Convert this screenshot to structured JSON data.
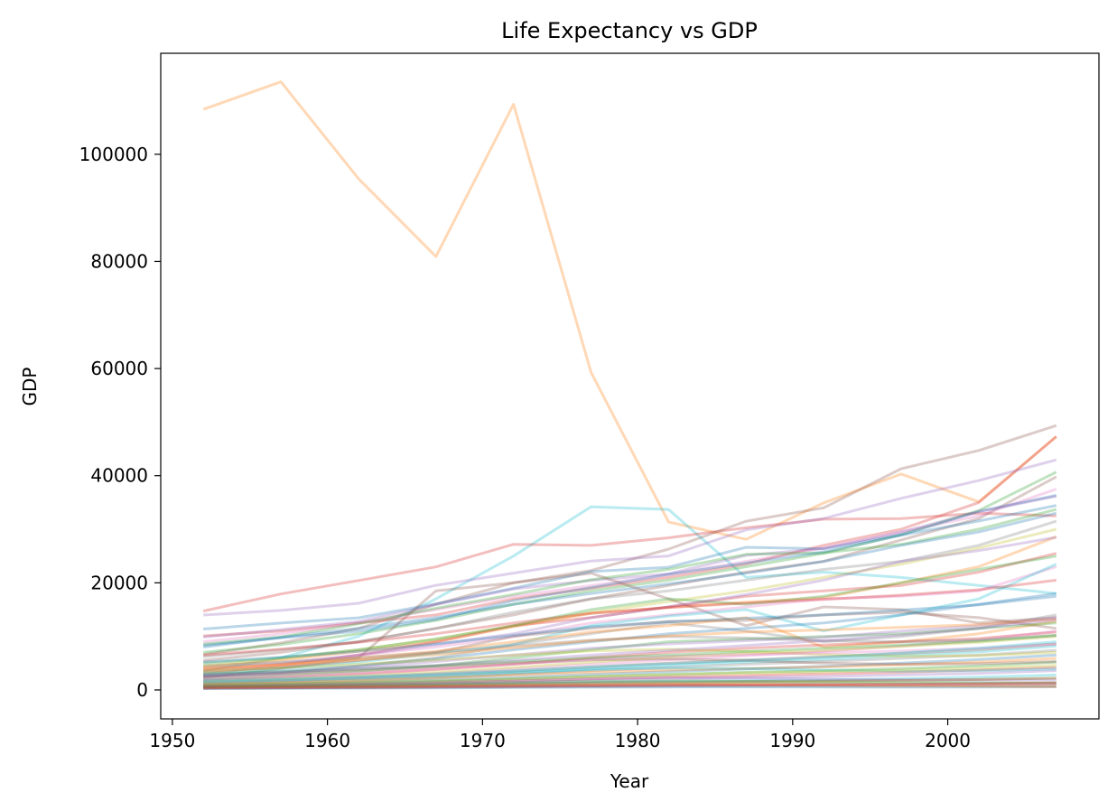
{
  "chart_data": {
    "type": "line",
    "title": "Life Expectancy vs GDP",
    "xlabel": "Year",
    "ylabel": "GDP",
    "xlim": [
      1949.25,
      2009.75
    ],
    "ylim": [
      -5400,
      118850
    ],
    "x_ticks": [
      1950,
      1960,
      1970,
      1980,
      1990,
      2000
    ],
    "y_ticks": [
      0,
      20000,
      40000,
      60000,
      80000,
      100000
    ],
    "x": [
      1952,
      1957,
      1962,
      1967,
      1972,
      1977,
      1982,
      1987,
      1992,
      1997,
      2002,
      2007
    ],
    "grid": false,
    "legend": "none",
    "line_alpha": 0.3,
    "palette": [
      "#1f77b4",
      "#ff7f0e",
      "#2ca02c",
      "#d62728",
      "#9467bd",
      "#8c564b",
      "#e377c2",
      "#7f7f7f",
      "#bcbd22",
      "#17becf"
    ],
    "series": [
      {
        "color": "#ff7f0e",
        "values": [
          108382,
          113523,
          95458,
          80895,
          109348,
          59265,
          31354,
          28118,
          34933,
          40301,
          35110,
          47307
        ]
      },
      {
        "color": "#17becf",
        "values": [
          3500,
          6000,
          10000,
          17000,
          25000,
          34200,
          33700,
          21000,
          22000,
          21000,
          19500,
          18000
        ]
      },
      {
        "color": "#d62728",
        "values": [
          14734,
          17910,
          20431,
          22966,
          27195,
          26982,
          28397,
          30282,
          31872,
          32000,
          33000,
          32500
        ]
      },
      {
        "color": "#8c564b",
        "values": [
          6600,
          8800,
          11500,
          16000,
          20000,
          22300,
          26300,
          31500,
          34000,
          41300,
          44700,
          49357
        ]
      },
      {
        "color": "#d62728",
        "values": [
          10095,
          11000,
          12500,
          14000,
          17000,
          19000,
          21000,
          23500,
          27000,
          30000,
          35000,
          47306
        ]
      },
      {
        "color": "#9467bd",
        "values": [
          13990,
          14847,
          16173,
          19530,
          21806,
          24073,
          25009,
          29884,
          32004,
          35767,
          39097,
          42952
        ]
      },
      {
        "color": "#2ca02c",
        "values": [
          7000,
          8500,
          10500,
          13000,
          16000,
          18500,
          20500,
          23000,
          25500,
          29000,
          33500,
          40675
        ]
      },
      {
        "color": "#8c564b",
        "values": [
          5500,
          7000,
          9000,
          11500,
          14000,
          17000,
          19500,
          22000,
          24000,
          28000,
          32000,
          39800
        ]
      },
      {
        "color": "#e377c2",
        "values": [
          9000,
          10500,
          12500,
          15000,
          17500,
          19500,
          21500,
          24000,
          26500,
          29500,
          32500,
          37500
        ]
      },
      {
        "color": "#1f77b4",
        "values": [
          11367,
          12489,
          13462,
          16076,
          18970,
          22090,
          22898,
          26626,
          26342,
          28954,
          33328,
          36319
        ]
      },
      {
        "color": "#9467bd",
        "values": [
          9867,
          11276,
          12791,
          15937,
          18866,
          20422,
          21688,
          25116,
          26406,
          29478,
          33287,
          36180
        ]
      },
      {
        "color": "#2ca02c",
        "values": [
          8527,
          9911,
          12329,
          15258,
          17832,
          20585,
          22517,
          25312,
          25599,
          27165,
          30018,
          33692
        ]
      },
      {
        "color": "#1f77b4",
        "values": [
          8344,
          9714,
          10991,
          13149,
          16672,
          19117,
          21597,
          23688,
          25775,
          28897,
          31541,
          34436
        ]
      },
      {
        "color": "#bcbd22",
        "values": [
          4500,
          5800,
          7500,
          9500,
          12000,
          14500,
          16500,
          18500,
          21000,
          23500,
          26500,
          30000
        ]
      },
      {
        "color": "#7f7f7f",
        "values": [
          6200,
          7500,
          9000,
          11500,
          14500,
          17000,
          18500,
          20500,
          22500,
          24000,
          27000,
          31500
        ]
      },
      {
        "color": "#1f77b4",
        "values": [
          8000,
          9800,
          11500,
          13500,
          16000,
          18000,
          19800,
          21800,
          24000,
          27000,
          29500,
          33000
        ]
      },
      {
        "color": "#ff7f0e",
        "values": [
          4300,
          5500,
          7200,
          9000,
          11800,
          14300,
          15400,
          16400,
          17200,
          20000,
          23000,
          28600
        ]
      },
      {
        "color": "#8c564b",
        "values": [
          2300,
          4000,
          6000,
          18500,
          20000,
          21800,
          17000,
          12000,
          15500,
          15000,
          12500,
          13500
        ]
      },
      {
        "color": "#d62728",
        "values": [
          3000,
          4500,
          6500,
          9000,
          12000,
          13500,
          15500,
          17500,
          18500,
          19500,
          22000,
          25500
        ]
      },
      {
        "color": "#2ca02c",
        "values": [
          5000,
          6000,
          7500,
          9500,
          12000,
          15000,
          17000,
          16000,
          17500,
          20000,
          22500,
          25000
        ]
      },
      {
        "color": "#e377c2",
        "values": [
          3500,
          4800,
          6500,
          8000,
          10000,
          12500,
          14000,
          15500,
          17000,
          17500,
          18500,
          23000
        ]
      },
      {
        "color": "#9467bd",
        "values": [
          4000,
          5000,
          6500,
          8500,
          10500,
          13500,
          15500,
          17800,
          20500,
          24000,
          26000,
          28500
        ]
      },
      {
        "color": "#17becf",
        "values": [
          3000,
          4000,
          5200,
          6800,
          8500,
          12000,
          13800,
          15000,
          11000,
          14000,
          17000,
          23500
        ]
      },
      {
        "color": "#8c564b",
        "values": [
          3500,
          4200,
          5500,
          7000,
          10000,
          11500,
          12800,
          13000,
          14000,
          14500,
          13500,
          11500
        ]
      },
      {
        "color": "#7f7f7f",
        "values": [
          2500,
          3200,
          4500,
          6000,
          8500,
          10500,
          12500,
          11000,
          9000,
          10000,
          11500,
          14000
        ]
      },
      {
        "color": "#ff7f0e",
        "values": [
          3800,
          4800,
          6000,
          7200,
          9000,
          10800,
          12000,
          13500,
          8000,
          9000,
          10500,
          12800
        ]
      },
      {
        "color": "#1f77b4",
        "values": [
          2700,
          3500,
          4500,
          5800,
          7500,
          9000,
          10500,
          11500,
          12500,
          14000,
          16000,
          18000
        ]
      },
      {
        "color": "#2ca02c",
        "values": [
          2000,
          2700,
          3500,
          4500,
          6000,
          7500,
          9000,
          9500,
          10000,
          10500,
          11500,
          12500
        ]
      },
      {
        "color": "#9467bd",
        "values": [
          2400,
          3100,
          4200,
          5300,
          6500,
          7800,
          8600,
          9200,
          9800,
          11000,
          12000,
          13500
        ]
      },
      {
        "color": "#d62728",
        "values": [
          1800,
          2300,
          3000,
          3800,
          4800,
          6000,
          7000,
          7800,
          8400,
          9000,
          9600,
          10800
        ]
      },
      {
        "color": "#e377c2",
        "values": [
          1500,
          1900,
          2400,
          3100,
          3900,
          4800,
          5600,
          6400,
          7200,
          8200,
          9300,
          11000
        ]
      },
      {
        "color": "#bcbd22",
        "values": [
          1600,
          2000,
          2600,
          3300,
          4200,
          5200,
          6100,
          6800,
          7400,
          8100,
          8900,
          10000
        ]
      },
      {
        "color": "#17becf",
        "values": [
          1200,
          1500,
          1900,
          2400,
          3100,
          3900,
          4600,
          5200,
          5700,
          6400,
          7100,
          8200
        ]
      },
      {
        "color": "#8c564b",
        "values": [
          1300,
          1700,
          2200,
          2800,
          3500,
          4300,
          5000,
          5600,
          6200,
          6800,
          7500,
          8600
        ]
      },
      {
        "color": "#7f7f7f",
        "values": [
          1000,
          1300,
          1700,
          2200,
          2900,
          3600,
          4200,
          4800,
          5300,
          5900,
          6500,
          7400
        ]
      },
      {
        "color": "#1f77b4",
        "values": [
          900,
          1100,
          1400,
          1800,
          2300,
          2900,
          3400,
          3900,
          4400,
          5000,
          5700,
          6500
        ]
      },
      {
        "color": "#ff7f0e",
        "values": [
          1100,
          1400,
          1800,
          2300,
          2800,
          3300,
          3700,
          4000,
          4300,
          4700,
          5200,
          5900
        ]
      },
      {
        "color": "#2ca02c",
        "values": [
          800,
          1000,
          1300,
          1600,
          2000,
          2500,
          2900,
          3300,
          3600,
          4000,
          4500,
          5200
        ]
      },
      {
        "color": "#d62728",
        "values": [
          700,
          850,
          1050,
          1300,
          1650,
          2050,
          2400,
          2700,
          3000,
          3300,
          3700,
          4200
        ]
      },
      {
        "color": "#9467bd",
        "values": [
          600,
          750,
          900,
          1100,
          1400,
          1700,
          2000,
          2300,
          2500,
          2800,
          3100,
          3600
        ]
      },
      {
        "color": "#17becf",
        "values": [
          500,
          600,
          750,
          900,
          1100,
          1350,
          1550,
          1750,
          1900,
          2100,
          2400,
          2800
        ]
      },
      {
        "color": "#bcbd22",
        "values": [
          450,
          550,
          650,
          800,
          950,
          1150,
          1300,
          1450,
          1600,
          1750,
          1950,
          2200
        ]
      },
      {
        "color": "#8c564b",
        "values": [
          400,
          480,
          560,
          650,
          760,
          880,
          980,
          1050,
          1100,
          1150,
          1250,
          1400
        ]
      },
      {
        "color": "#e377c2",
        "values": [
          350,
          420,
          500,
          580,
          680,
          780,
          860,
          900,
          920,
          950,
          1000,
          1100
        ]
      },
      {
        "color": "#7f7f7f",
        "values": [
          300,
          360,
          420,
          480,
          560,
          640,
          700,
          720,
          700,
          680,
          700,
          760
        ]
      },
      {
        "color": "#1f77b4",
        "values": [
          250,
          290,
          340,
          390,
          450,
          510,
          550,
          560,
          540,
          520,
          540,
          590
        ]
      },
      {
        "color": "#ff7f0e",
        "values": [
          500,
          580,
          660,
          760,
          880,
          1000,
          1100,
          1000,
          900,
          800,
          700,
          600
        ]
      },
      {
        "color": "#2ca02c",
        "values": [
          700,
          800,
          950,
          1150,
          1400,
          1600,
          1700,
          1600,
          1500,
          1400,
          1350,
          1300
        ]
      },
      {
        "color": "#d62728",
        "values": [
          350,
          400,
          470,
          550,
          650,
          760,
          850,
          920,
          980,
          1050,
          1120,
          1250
        ]
      },
      {
        "color": "#9467bd",
        "values": [
          900,
          1050,
          1250,
          1500,
          1800,
          2100,
          2300,
          2200,
          2000,
          1900,
          1850,
          1900
        ]
      },
      {
        "color": "#17becf",
        "values": [
          1500,
          1800,
          2200,
          2700,
          3300,
          3800,
          4100,
          4000,
          3700,
          3500,
          3600,
          3900
        ]
      },
      {
        "color": "#8c564b",
        "values": [
          2500,
          3000,
          3600,
          4300,
          5000,
          5600,
          5800,
          5500,
          5000,
          4800,
          4900,
          5300
        ]
      },
      {
        "color": "#bcbd22",
        "values": [
          3500,
          4100,
          4800,
          5600,
          6500,
          7300,
          7600,
          7200,
          6600,
          6300,
          6400,
          7000
        ]
      },
      {
        "color": "#e377c2",
        "values": [
          2000,
          2500,
          3100,
          3900,
          4800,
          5700,
          6300,
          6600,
          6900,
          7300,
          7800,
          8600
        ]
      },
      {
        "color": "#7f7f7f",
        "values": [
          4500,
          5200,
          6000,
          7000,
          8200,
          9300,
          10000,
          9700,
          9200,
          9000,
          9300,
          10200
        ]
      },
      {
        "color": "#1f77b4",
        "values": [
          5200,
          6100,
          7200,
          8600,
          10200,
          11800,
          12700,
          13400,
          14000,
          14900,
          15900,
          17500
        ]
      },
      {
        "color": "#2ca02c",
        "values": [
          3000,
          3400,
          3900,
          4500,
          5300,
          6000,
          6500,
          7200,
          7800,
          8400,
          9100,
          10200
        ]
      },
      {
        "color": "#ff7f0e",
        "values": [
          4000,
          4700,
          5600,
          6600,
          7900,
          9200,
          10100,
          10800,
          11200,
          11700,
          12200,
          13200
        ]
      },
      {
        "color": "#d62728",
        "values": [
          6500,
          7600,
          8900,
          10500,
          12500,
          14300,
          15400,
          16200,
          16900,
          17700,
          18700,
          20500
        ]
      },
      {
        "color": "#9467bd",
        "values": [
          2800,
          3300,
          3900,
          4600,
          5500,
          6500,
          7400,
          8300,
          9200,
          10300,
          11500,
          13100
        ]
      },
      {
        "color": "#17becf",
        "values": [
          1800,
          2100,
          2500,
          3000,
          3600,
          4300,
          4900,
          5500,
          6100,
          6900,
          7800,
          9000
        ]
      },
      {
        "color": "#bcbd22",
        "values": [
          1000,
          1200,
          1450,
          1750,
          2100,
          2500,
          2850,
          3150,
          3400,
          3700,
          4050,
          4600
        ]
      },
      {
        "color": "#8c564b",
        "values": [
          600,
          700,
          820,
          960,
          1120,
          1300,
          1450,
          1580,
          1680,
          1800,
          1950,
          2200
        ]
      }
    ]
  }
}
